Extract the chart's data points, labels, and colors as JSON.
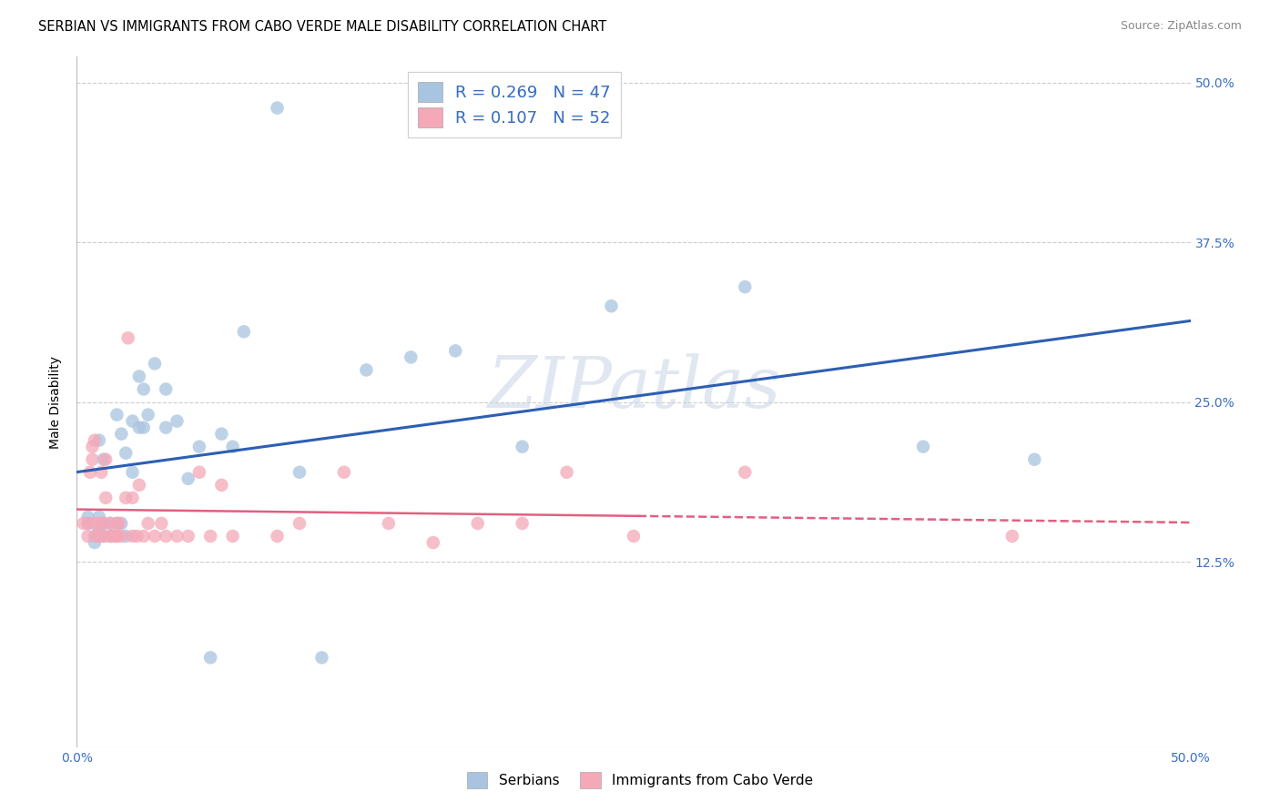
{
  "title": "SERBIAN VS IMMIGRANTS FROM CABO VERDE MALE DISABILITY CORRELATION CHART",
  "source": "Source: ZipAtlas.com",
  "ylabel": "Male Disability",
  "watermark": "ZIPatlas",
  "xlim": [
    0.0,
    0.5
  ],
  "ylim": [
    -0.02,
    0.52
  ],
  "yticks": [
    0.125,
    0.25,
    0.375,
    0.5
  ],
  "ytick_labels": [
    "12.5%",
    "25.0%",
    "37.5%",
    "50.0%"
  ],
  "legend_r1": "R = 0.269",
  "legend_n1": "N = 47",
  "legend_r2": "R = 0.107",
  "legend_n2": "N = 52",
  "series1_label": "Serbians",
  "series2_label": "Immigrants from Cabo Verde",
  "color1": "#a8c4e0",
  "color2": "#f4a8b8",
  "line1_color": "#2c5fb3",
  "line2_color": "#e06080",
  "title_fontsize": 10.5,
  "source_fontsize": 9,
  "axis_label_fontsize": 10,
  "tick_fontsize": 10,
  "legend_fontsize": 13,
  "serbians_x": [
    0.005,
    0.005,
    0.008,
    0.008,
    0.01,
    0.01,
    0.01,
    0.012,
    0.012,
    0.012,
    0.015,
    0.015,
    0.018,
    0.018,
    0.018,
    0.02,
    0.02,
    0.022,
    0.022,
    0.025,
    0.025,
    0.028,
    0.028,
    0.03,
    0.03,
    0.032,
    0.035,
    0.04,
    0.04,
    0.045,
    0.05,
    0.055,
    0.06,
    0.065,
    0.07,
    0.075,
    0.09,
    0.1,
    0.11,
    0.13,
    0.15,
    0.17,
    0.2,
    0.24,
    0.3,
    0.38,
    0.43
  ],
  "serbians_y": [
    0.155,
    0.16,
    0.14,
    0.145,
    0.15,
    0.16,
    0.22,
    0.145,
    0.155,
    0.205,
    0.145,
    0.155,
    0.145,
    0.155,
    0.24,
    0.155,
    0.225,
    0.145,
    0.21,
    0.195,
    0.235,
    0.23,
    0.27,
    0.23,
    0.26,
    0.24,
    0.28,
    0.23,
    0.26,
    0.235,
    0.19,
    0.215,
    0.05,
    0.225,
    0.215,
    0.305,
    0.48,
    0.195,
    0.05,
    0.275,
    0.285,
    0.29,
    0.215,
    0.325,
    0.34,
    0.215,
    0.205
  ],
  "cabo_verde_x": [
    0.003,
    0.005,
    0.005,
    0.006,
    0.007,
    0.007,
    0.008,
    0.008,
    0.009,
    0.01,
    0.01,
    0.011,
    0.012,
    0.012,
    0.013,
    0.013,
    0.015,
    0.015,
    0.016,
    0.017,
    0.018,
    0.018,
    0.019,
    0.02,
    0.022,
    0.023,
    0.025,
    0.025,
    0.027,
    0.028,
    0.03,
    0.032,
    0.035,
    0.038,
    0.04,
    0.045,
    0.05,
    0.055,
    0.06,
    0.065,
    0.07,
    0.09,
    0.1,
    0.12,
    0.14,
    0.16,
    0.18,
    0.2,
    0.22,
    0.25,
    0.3,
    0.42
  ],
  "cabo_verde_y": [
    0.155,
    0.145,
    0.155,
    0.195,
    0.205,
    0.215,
    0.155,
    0.22,
    0.145,
    0.145,
    0.155,
    0.195,
    0.145,
    0.155,
    0.175,
    0.205,
    0.145,
    0.155,
    0.145,
    0.145,
    0.145,
    0.155,
    0.155,
    0.145,
    0.175,
    0.3,
    0.145,
    0.175,
    0.145,
    0.185,
    0.145,
    0.155,
    0.145,
    0.155,
    0.145,
    0.145,
    0.145,
    0.195,
    0.145,
    0.185,
    0.145,
    0.145,
    0.155,
    0.195,
    0.155,
    0.14,
    0.155,
    0.155,
    0.195,
    0.145,
    0.195,
    0.145
  ]
}
